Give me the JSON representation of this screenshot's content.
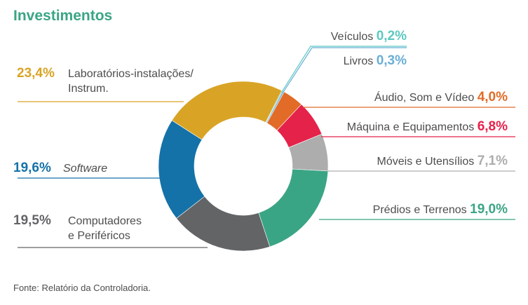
{
  "chart_data": {
    "type": "pie",
    "title": "Investimentos",
    "source": "Fonte: Relatório da Controladoria.",
    "slices": [
      {
        "label": "Veículos",
        "value": 0.2,
        "value_label": "0,2%",
        "color": "#5cc9c2"
      },
      {
        "label": "Livros",
        "value": 0.3,
        "value_label": "0,3%",
        "color": "#6aaed6"
      },
      {
        "label": "Áudio, Som e Vídeo",
        "value": 4.0,
        "value_label": "4,0%",
        "color": "#e26b27"
      },
      {
        "label": "Máquina e Equipamentos",
        "value": 6.8,
        "value_label": "6,8%",
        "color": "#e5224a"
      },
      {
        "label": "Móveis e Utensílios",
        "value": 7.1,
        "value_label": "7,1%",
        "color": "#adadad"
      },
      {
        "label": "Prédios e Terrenos",
        "value": 19.0,
        "value_label": "19,0%",
        "color": "#3aa585"
      },
      {
        "label": "Computadores e Periféricos",
        "label_lines": [
          "Computadores",
          "e Periféricos"
        ],
        "value": 19.5,
        "value_label": "19,5%",
        "color": "#636466"
      },
      {
        "label": "Software",
        "value": 19.6,
        "value_label": "19,6%",
        "color": "#1472a8",
        "italic": true
      },
      {
        "label": "Laboratórios-instalações/ Instrum.",
        "label_lines": [
          "Laboratórios-instalações/",
          "Instrum."
        ],
        "value": 23.4,
        "value_label": "23,4%",
        "color": "#d9a426"
      }
    ],
    "title_color": "#3aa585"
  }
}
